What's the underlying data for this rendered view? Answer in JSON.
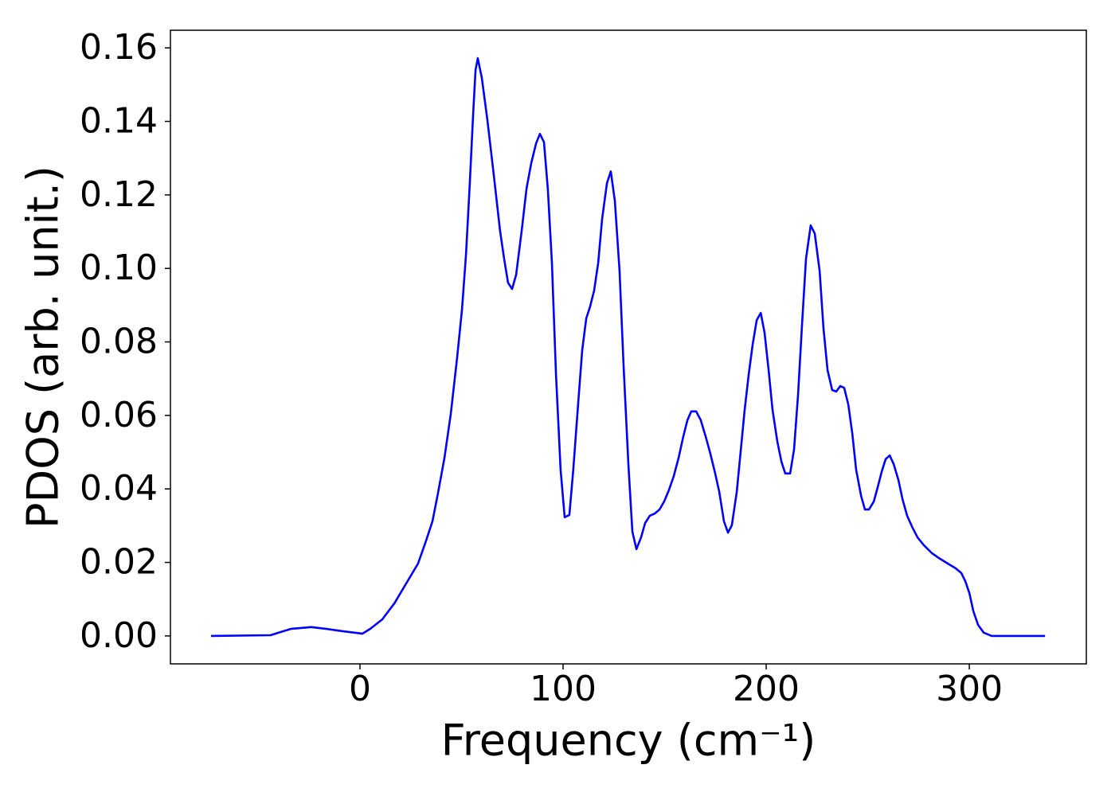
{
  "chart_data": {
    "type": "line",
    "xlabel": "Frequency (cm⁻¹)",
    "ylabel": "PDOS (arb. unit.)",
    "x": [
      -73.3,
      -44,
      -40,
      -34,
      -24,
      -16.5,
      -8.6,
      -2.7,
      1.2,
      5,
      11,
      17,
      23,
      28.6,
      32.5,
      35.7,
      38.4,
      41.6,
      44.7,
      47.8,
      50.2,
      52.2,
      54.1,
      55.7,
      56.9,
      58,
      60,
      62.7,
      65.9,
      69,
      71,
      72.9,
      74.9,
      76.9,
      79.6,
      82,
      84.3,
      86.7,
      88.6,
      90.6,
      92.5,
      94.5,
      96.5,
      98.8,
      100.8,
      103.1,
      105,
      107.5,
      109.4,
      111.4,
      113.3,
      115.3,
      117.3,
      119.2,
      121.6,
      123.5,
      125.5,
      127.8,
      129.8,
      132.2,
      134.1,
      136.1,
      138.4,
      140.4,
      142.7,
      145.1,
      147.5,
      149.8,
      152.2,
      154.5,
      156.9,
      159.2,
      161.2,
      163.1,
      165.5,
      167.8,
      170.2,
      172.5,
      174.9,
      176.9,
      179.2,
      181.2,
      183.1,
      185.5,
      187.5,
      189.4,
      191.4,
      193.3,
      195.3,
      197.3,
      199.2,
      201.2,
      203.1,
      205.5,
      207.5,
      209.4,
      211.8,
      213.7,
      215.7,
      217.6,
      219.6,
      221.9,
      223.9,
      226.3,
      228.2,
      230.2,
      232.5,
      234.5,
      236.5,
      238.4,
      240.4,
      242.4,
      244.3,
      246.7,
      248.6,
      250.6,
      253,
      254.9,
      256.9,
      258.8,
      260.8,
      262.7,
      265.1,
      267.1,
      269.4,
      271.8,
      274.5,
      277.6,
      281.6,
      285.5,
      289.4,
      293.3,
      296.1,
      298,
      300,
      302,
      304.3,
      307.1,
      311,
      337.3
    ],
    "series": [
      {
        "name": "PDOS",
        "color": "#0000ff",
        "values": [
          0,
          0.0002,
          0.0009,
          0.0019,
          0.0024,
          0.0019,
          0.0013,
          0.0009,
          0.0006,
          0.0019,
          0.0045,
          0.0089,
          0.0145,
          0.0197,
          0.0258,
          0.0312,
          0.0388,
          0.0485,
          0.0604,
          0.0756,
          0.0886,
          0.1037,
          0.1232,
          0.1416,
          0.154,
          0.1572,
          0.1518,
          0.1405,
          0.1254,
          0.1102,
          0.1026,
          0.0961,
          0.0944,
          0.0983,
          0.1102,
          0.1217,
          0.1286,
          0.134,
          0.1366,
          0.1344,
          0.1215,
          0.1015,
          0.0712,
          0.0452,
          0.0323,
          0.0329,
          0.0452,
          0.0637,
          0.0777,
          0.0864,
          0.0896,
          0.094,
          0.1015,
          0.1134,
          0.1232,
          0.1264,
          0.1184,
          0.0994,
          0.0734,
          0.0463,
          0.0284,
          0.0236,
          0.0268,
          0.0307,
          0.0327,
          0.0333,
          0.0344,
          0.0366,
          0.0398,
          0.0435,
          0.0485,
          0.0543,
          0.0587,
          0.0611,
          0.0611,
          0.0587,
          0.0543,
          0.0496,
          0.0442,
          0.0392,
          0.0312,
          0.0281,
          0.0301,
          0.0392,
          0.0507,
          0.0615,
          0.0712,
          0.0792,
          0.0859,
          0.0879,
          0.0825,
          0.0723,
          0.0615,
          0.0528,
          0.0474,
          0.0442,
          0.0442,
          0.0507,
          0.0658,
          0.0842,
          0.1026,
          0.1117,
          0.1095,
          0.0994,
          0.0836,
          0.0723,
          0.0669,
          0.0665,
          0.068,
          0.0675,
          0.063,
          0.055,
          0.0452,
          0.0381,
          0.0344,
          0.0344,
          0.0366,
          0.0405,
          0.0448,
          0.0481,
          0.0491,
          0.0468,
          0.0424,
          0.0372,
          0.0327,
          0.0297,
          0.0268,
          0.0247,
          0.0225,
          0.021,
          0.0197,
          0.0184,
          0.0171,
          0.0149,
          0.0117,
          0.0067,
          0.003,
          0.0009,
          0,
          0
        ]
      }
    ],
    "xlim": [
      -93.3,
      357.6
    ],
    "ylim": [
      -0.0076,
      0.1648
    ],
    "xticks": [
      0,
      100,
      200,
      300
    ],
    "yticks": [
      {
        "value": 0,
        "label": "0.00"
      },
      {
        "value": 0.02,
        "label": "0.02"
      },
      {
        "value": 0.04,
        "label": "0.04"
      },
      {
        "value": 0.06,
        "label": "0.06"
      },
      {
        "value": 0.08,
        "label": "0.08"
      },
      {
        "value": 0.1,
        "label": "0.10"
      },
      {
        "value": 0.12,
        "label": "0.12"
      },
      {
        "value": 0.14,
        "label": "0.14"
      },
      {
        "value": 0.16,
        "label": "0.16"
      }
    ],
    "grid": false
  }
}
